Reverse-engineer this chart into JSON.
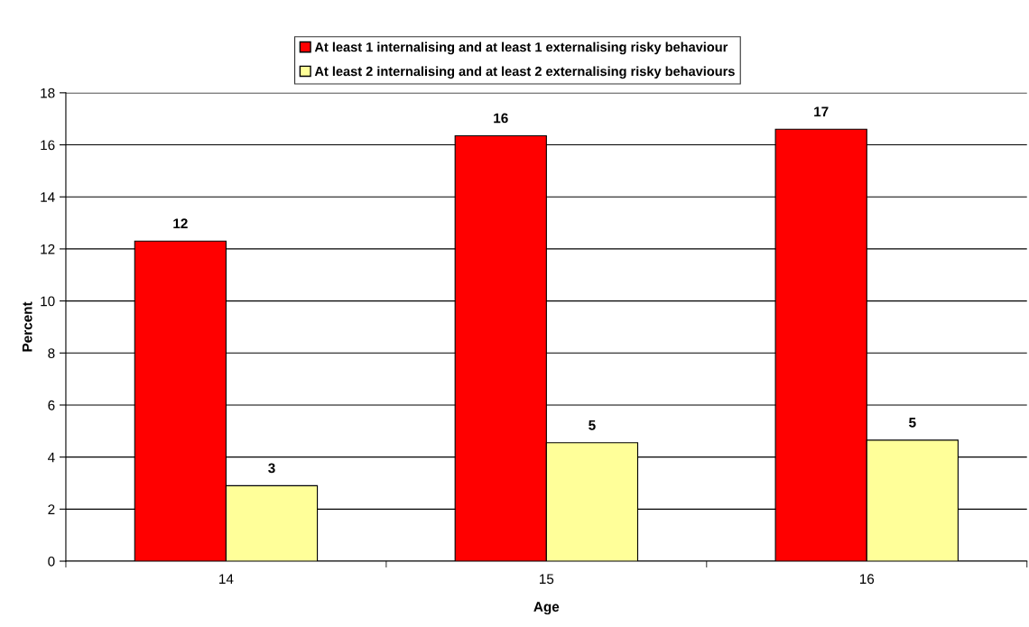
{
  "chart_data": {
    "type": "bar",
    "xlabel": "Age",
    "ylabel": "Percent",
    "categories": [
      "14",
      "15",
      "16"
    ],
    "series": [
      {
        "name": "At least 1 internalising and at least 1 externalising risky behaviour",
        "color": "#ff0000",
        "values": [
          12.3,
          16.35,
          16.6
        ],
        "value_labels": [
          "12",
          "16",
          "17"
        ]
      },
      {
        "name": "At least 2 internalising and at least 2 externalising risky behaviours",
        "color": "#ffff99",
        "values": [
          2.9,
          4.55,
          4.65
        ],
        "value_labels": [
          "3",
          "5",
          "5"
        ]
      }
    ],
    "ylim": [
      0,
      18
    ],
    "yticks": [
      0,
      2,
      4,
      6,
      8,
      10,
      12,
      14,
      16,
      18
    ],
    "grid": "y",
    "legend": "top"
  }
}
